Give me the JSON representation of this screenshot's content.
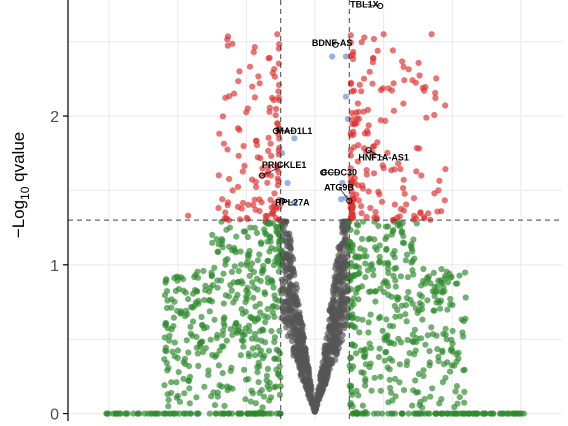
{
  "chart_data": {
    "type": "scatter",
    "ylabel": {
      "prefix": "−Log",
      "sub": "10",
      "suffix": " qvalue"
    },
    "xlim": [
      -3.6,
      3.6
    ],
    "ylim": [
      -0.05,
      2.78
    ],
    "yticks": [
      {
        "value": 0,
        "label": "0"
      },
      {
        "value": 1,
        "label": "1"
      },
      {
        "value": 2,
        "label": "2"
      }
    ],
    "thresholds": {
      "x": [
        -0.5,
        0.5
      ],
      "y": 1.3
    },
    "grid": true,
    "colors": {
      "ns": "#555555",
      "log2fc": "#2e8b2e",
      "pvalue": "#6a8cd6",
      "both": "#e03030",
      "axis": "#000000",
      "grid": "#ebebeb",
      "threshold": "#444444"
    },
    "labels": [
      {
        "gene": "TBL1X",
        "x": 0.72,
        "y": 2.73,
        "px": 0.95,
        "py": 2.74
      },
      {
        "gene": "BDNF-AS",
        "x": 0.25,
        "y": 2.47,
        "px": 0.3,
        "py": 2.48
      },
      {
        "gene": "MAD1L1",
        "x": -0.3,
        "y": 1.88,
        "px": -0.57,
        "py": 1.9
      },
      {
        "gene": "HNF1A-AS1",
        "x": 1.0,
        "y": 1.7,
        "px": 0.78,
        "py": 1.77
      },
      {
        "gene": "PRICKLE1",
        "x": -0.45,
        "y": 1.65,
        "px": -0.77,
        "py": 1.6
      },
      {
        "gene": "CCDC30",
        "x": 0.35,
        "y": 1.6,
        "px": 0.12,
        "py": 1.62
      },
      {
        "gene": "ATG9B",
        "x": 0.35,
        "y": 1.5,
        "px": 0.5,
        "py": 1.43
      },
      {
        "gene": "RPL27A",
        "x": -0.33,
        "y": 1.4,
        "px": -0.48,
        "py": 1.43
      }
    ],
    "ns_points": [],
    "fc_points": [],
    "p_points": [
      {
        "x": 0.25,
        "y": 2.4
      },
      {
        "x": 0.45,
        "y": 2.4
      },
      {
        "x": 0.45,
        "y": 2.13
      },
      {
        "x": 0.48,
        "y": 1.98
      },
      {
        "x": -0.48,
        "y": 1.75
      },
      {
        "x": 0.4,
        "y": 1.55
      },
      {
        "x": -0.3,
        "y": 1.85
      },
      {
        "x": -0.4,
        "y": 1.55
      },
      {
        "x": 0.45,
        "y": 1.45
      },
      {
        "x": 0.38,
        "y": 1.44
      },
      {
        "x": -0.3,
        "y": 1.42
      }
    ],
    "both_points": []
  }
}
